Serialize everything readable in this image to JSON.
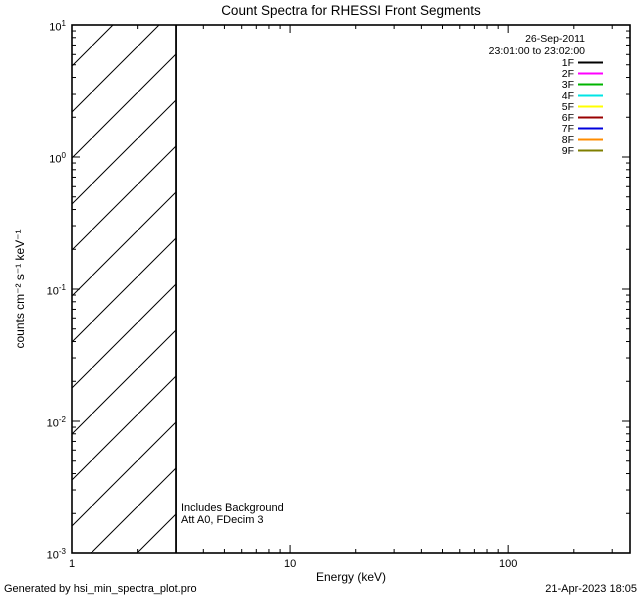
{
  "footer": {
    "generator": "Generated by hsi_min_spectra_plot.pro",
    "timestamp": "21-Apr-2023 18:05"
  },
  "chart_data": {
    "type": "line",
    "title": "Count Spectra for RHESSI Front Segments",
    "xlabel": "Energy (keV)",
    "ylabel": "counts cm⁻² s⁻¹ keV⁻¹",
    "xscale": "log",
    "yscale": "log",
    "xlim": [
      1,
      362
    ],
    "ylim": [
      0.001,
      10
    ],
    "grid": false,
    "x_ticks": [
      {
        "value": 1,
        "label": "1"
      },
      {
        "value": 10,
        "label": "10"
      },
      {
        "value": 100,
        "label": "100"
      }
    ],
    "y_ticks": [
      {
        "value": 10,
        "base": "10",
        "exp": "1"
      },
      {
        "value": 1,
        "base": "10",
        "exp": "0"
      },
      {
        "value": 0.1,
        "base": "10",
        "exp": "-1"
      },
      {
        "value": 0.01,
        "base": "10",
        "exp": "-2"
      },
      {
        "value": 0.001,
        "base": "10",
        "exp": "-3"
      }
    ],
    "legend_position": "top-right",
    "legend": {
      "date": "26-Sep-2011",
      "time_range": "23:01:00 to 23:02:00",
      "entries": [
        {
          "label": "1F",
          "color": "#000000"
        },
        {
          "label": "2F",
          "color": "#ff00ff"
        },
        {
          "label": "3F",
          "color": "#00b400"
        },
        {
          "label": "4F",
          "color": "#00e5e5"
        },
        {
          "label": "5F",
          "color": "#ffff00"
        },
        {
          "label": "6F",
          "color": "#990000"
        },
        {
          "label": "7F",
          "color": "#0000dd"
        },
        {
          "label": "8F",
          "color": "#ff8c00"
        },
        {
          "label": "9F",
          "color": "#7f7f00"
        }
      ]
    },
    "hatched_region": {
      "x_start": 1,
      "x_end": 3
    },
    "annotations": [
      "Includes Background",
      "Att A0, FDecim 3"
    ]
  }
}
